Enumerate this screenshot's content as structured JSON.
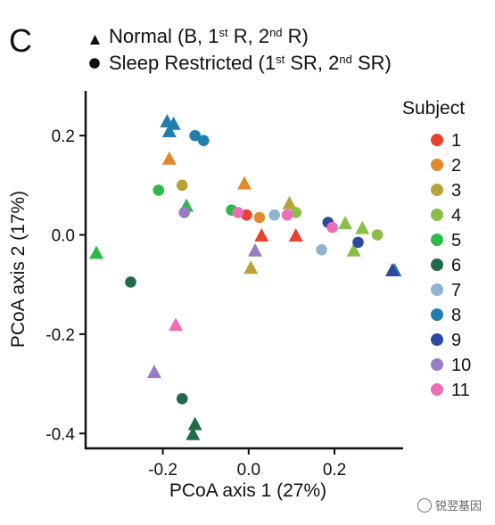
{
  "chart_data": {
    "type": "scatter",
    "panel_label": "C",
    "shape_legend": [
      {
        "shape": "triangle",
        "text": "Normal (B, 1st R, 2nd R)"
      },
      {
        "shape": "circle",
        "text": "Sleep Restricted (1st SR, 2nd SR)"
      }
    ],
    "xlabel": "PCoA axis 1 (27%)",
    "ylabel": "PCoA axis 2 (17%)",
    "xlim": [
      -0.38,
      0.36
    ],
    "ylim": [
      -0.43,
      0.29
    ],
    "x_ticks": [
      -0.2,
      0.0,
      0.2
    ],
    "x_tick_labels": [
      "-0.2",
      "0.0",
      "0.2"
    ],
    "y_ticks": [
      0.2,
      0.0,
      -0.2,
      -0.4
    ],
    "y_tick_labels": [
      "0.2",
      "0.0",
      "-0.2",
      "-0.4"
    ],
    "grid": false,
    "legend_title": "Subject",
    "legend_position": "right",
    "subjects": [
      {
        "label": "1",
        "color": "#e8412e"
      },
      {
        "label": "2",
        "color": "#e08a2e"
      },
      {
        "label": "3",
        "color": "#b8a33a"
      },
      {
        "label": "4",
        "color": "#8cbd4a"
      },
      {
        "label": "5",
        "color": "#2fb84a"
      },
      {
        "label": "6",
        "color": "#236b48"
      },
      {
        "label": "7",
        "color": "#8fb3d0"
      },
      {
        "label": "8",
        "color": "#1f7fae"
      },
      {
        "label": "9",
        "color": "#2d4aa0"
      },
      {
        "label": "10",
        "color": "#9a7cc4"
      },
      {
        "label": "11",
        "color": "#ea6fb6"
      }
    ],
    "points": [
      {
        "subject": "1",
        "shape": "triangle",
        "x": 0.03,
        "y": 0.0
      },
      {
        "subject": "1",
        "shape": "triangle",
        "x": 0.11,
        "y": 0.0
      },
      {
        "subject": "1",
        "shape": "circle",
        "x": -0.005,
        "y": 0.04
      },
      {
        "subject": "2",
        "shape": "triangle",
        "x": -0.185,
        "y": 0.155
      },
      {
        "subject": "2",
        "shape": "triangle",
        "x": -0.01,
        "y": 0.105
      },
      {
        "subject": "2",
        "shape": "circle",
        "x": 0.025,
        "y": 0.035
      },
      {
        "subject": "3",
        "shape": "circle",
        "x": -0.155,
        "y": 0.1
      },
      {
        "subject": "3",
        "shape": "triangle",
        "x": 0.005,
        "y": -0.065
      },
      {
        "subject": "3",
        "shape": "triangle",
        "x": 0.095,
        "y": 0.065
      },
      {
        "subject": "4",
        "shape": "triangle",
        "x": 0.225,
        "y": 0.025
      },
      {
        "subject": "4",
        "shape": "triangle",
        "x": 0.245,
        "y": -0.03
      },
      {
        "subject": "4",
        "shape": "triangle",
        "x": 0.265,
        "y": 0.015
      },
      {
        "subject": "4",
        "shape": "circle",
        "x": 0.3,
        "y": 0.0
      },
      {
        "subject": "4",
        "shape": "circle",
        "x": 0.11,
        "y": 0.045
      },
      {
        "subject": "5",
        "shape": "circle",
        "x": -0.21,
        "y": 0.09
      },
      {
        "subject": "5",
        "shape": "triangle",
        "x": -0.145,
        "y": 0.06
      },
      {
        "subject": "5",
        "shape": "circle",
        "x": -0.04,
        "y": 0.05
      },
      {
        "subject": "5",
        "shape": "triangle",
        "x": -0.355,
        "y": -0.035
      },
      {
        "subject": "6",
        "shape": "circle",
        "x": -0.275,
        "y": -0.095
      },
      {
        "subject": "6",
        "shape": "circle",
        "x": -0.155,
        "y": -0.33
      },
      {
        "subject": "6",
        "shape": "triangle",
        "x": -0.125,
        "y": -0.38
      },
      {
        "subject": "6",
        "shape": "triangle",
        "x": -0.13,
        "y": -0.4
      },
      {
        "subject": "7",
        "shape": "circle",
        "x": 0.06,
        "y": 0.04
      },
      {
        "subject": "7",
        "shape": "circle",
        "x": 0.17,
        "y": -0.03
      },
      {
        "subject": "8",
        "shape": "triangle",
        "x": -0.19,
        "y": 0.23
      },
      {
        "subject": "8",
        "shape": "triangle",
        "x": -0.175,
        "y": 0.225
      },
      {
        "subject": "8",
        "shape": "triangle",
        "x": -0.185,
        "y": 0.21
      },
      {
        "subject": "8",
        "shape": "circle",
        "x": -0.125,
        "y": 0.2
      },
      {
        "subject": "8",
        "shape": "circle",
        "x": -0.105,
        "y": 0.19
      },
      {
        "subject": "8",
        "shape": "triangle",
        "x": 0.34,
        "y": -0.07
      },
      {
        "subject": "9",
        "shape": "circle",
        "x": 0.185,
        "y": 0.025
      },
      {
        "subject": "9",
        "shape": "circle",
        "x": 0.255,
        "y": -0.015
      },
      {
        "subject": "9",
        "shape": "triangle",
        "x": 0.335,
        "y": -0.07
      },
      {
        "subject": "10",
        "shape": "circle",
        "x": -0.15,
        "y": 0.045
      },
      {
        "subject": "10",
        "shape": "triangle",
        "x": 0.015,
        "y": -0.03
      },
      {
        "subject": "10",
        "shape": "triangle",
        "x": -0.22,
        "y": -0.275
      },
      {
        "subject": "11",
        "shape": "circle",
        "x": -0.025,
        "y": 0.045
      },
      {
        "subject": "11",
        "shape": "circle",
        "x": 0.09,
        "y": 0.04
      },
      {
        "subject": "11",
        "shape": "circle",
        "x": 0.195,
        "y": 0.015
      },
      {
        "subject": "11",
        "shape": "triangle",
        "x": -0.17,
        "y": -0.18
      }
    ]
  },
  "watermark": {
    "text": "锐翌基因"
  }
}
